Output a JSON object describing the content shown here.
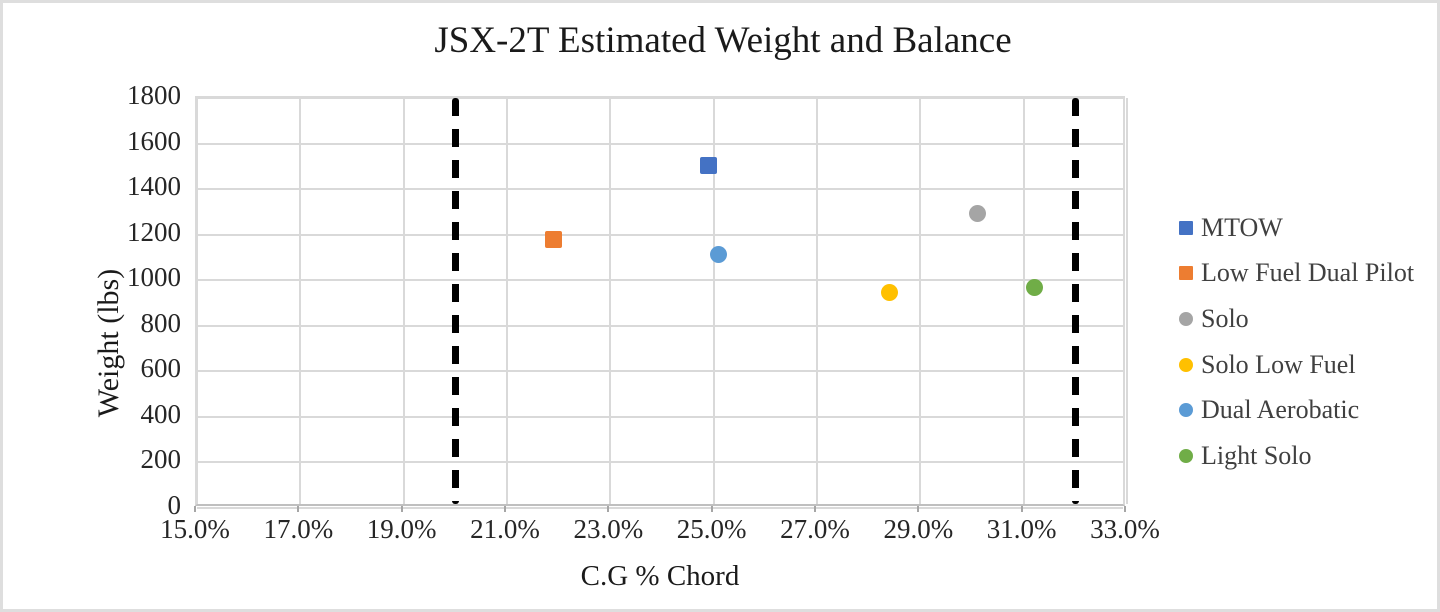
{
  "chart_data": {
    "type": "scatter",
    "title": "JSX-2T Estimated Weight and Balance",
    "xlabel": "C.G % Chord",
    "ylabel": "Weight (lbs)",
    "xlim": [
      15.0,
      33.0
    ],
    "ylim": [
      0,
      1800
    ],
    "grid": true,
    "legend_position": "right",
    "x_tick_labels": [
      "15.0%",
      "17.0%",
      "19.0%",
      "21.0%",
      "23.0%",
      "25.0%",
      "27.0%",
      "29.0%",
      "31.0%",
      "33.0%"
    ],
    "x_tick_values": [
      15,
      17,
      19,
      21,
      23,
      25,
      27,
      29,
      31,
      33
    ],
    "y_tick_labels": [
      "0",
      "200",
      "400",
      "600",
      "800",
      "1000",
      "1200",
      "1400",
      "1600",
      "1800"
    ],
    "y_tick_values": [
      0,
      200,
      400,
      600,
      800,
      1000,
      1200,
      1400,
      1600,
      1800
    ],
    "series": [
      {
        "name": "MTOW",
        "marker": "square",
        "color": "#4472C4",
        "points": [
          {
            "x": 24.9,
            "y": 1505
          }
        ]
      },
      {
        "name": "Low Fuel Dual Pilot",
        "marker": "square",
        "color": "#ED7D31",
        "points": [
          {
            "x": 21.9,
            "y": 1180
          }
        ]
      },
      {
        "name": "Solo",
        "marker": "circle",
        "color": "#A5A5A5",
        "points": [
          {
            "x": 30.1,
            "y": 1295
          }
        ]
      },
      {
        "name": "Solo Low Fuel",
        "marker": "circle",
        "color": "#FFC000",
        "points": [
          {
            "x": 28.4,
            "y": 945
          }
        ]
      },
      {
        "name": "Dual Aerobatic",
        "marker": "circle",
        "color": "#5B9BD5",
        "points": [
          {
            "x": 25.1,
            "y": 1115
          }
        ]
      },
      {
        "name": "Light Solo",
        "marker": "circle",
        "color": "#70AD47",
        "points": [
          {
            "x": 31.2,
            "y": 970
          }
        ]
      }
    ],
    "limit_lines": [
      {
        "x": 20.0,
        "style": "dashed",
        "color": "#000000"
      },
      {
        "x": 32.0,
        "style": "dashed",
        "color": "#000000"
      }
    ]
  }
}
